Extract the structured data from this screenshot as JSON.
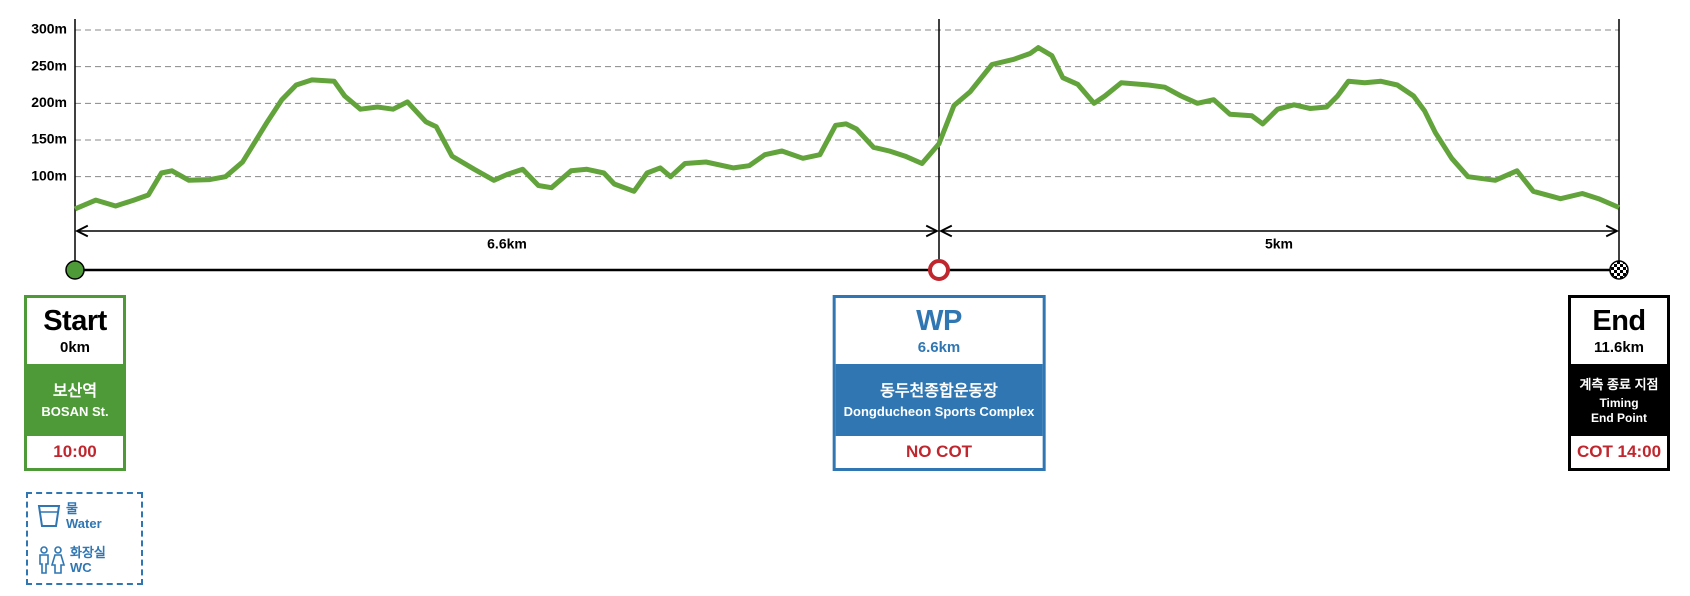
{
  "chart_data": {
    "type": "line",
    "color": "#62a33c",
    "ylim": [
      0,
      315
    ],
    "yticks": [
      {
        "value": 100,
        "label": "100m"
      },
      {
        "value": 150,
        "label": "150m"
      },
      {
        "value": 200,
        "label": "200m"
      },
      {
        "value": 250,
        "label": "250m"
      },
      {
        "value": 300,
        "label": "300m"
      }
    ],
    "grid": true,
    "x": [
      0,
      0.16,
      0.31,
      0.45,
      0.56,
      0.66,
      0.74,
      0.87,
      1.03,
      1.15,
      1.28,
      1.47,
      1.58,
      1.69,
      1.81,
      1.98,
      2.06,
      2.18,
      2.31,
      2.43,
      2.54,
      2.68,
      2.76,
      2.88,
      3.05,
      3.2,
      3.3,
      3.42,
      3.54,
      3.64,
      3.79,
      3.91,
      4.04,
      4.12,
      4.27,
      4.37,
      4.47,
      4.55,
      4.66,
      4.82,
      5.03,
      5.15,
      5.27,
      5.4,
      5.56,
      5.69,
      5.81,
      5.89,
      5.97,
      6.1,
      6.22,
      6.34,
      6.47,
      6.6,
      6.71,
      6.83,
      6.99,
      7.15,
      7.27,
      7.33,
      7.43,
      7.51,
      7.62,
      7.74,
      7.82,
      7.94,
      8.14,
      8.26,
      8.38,
      8.5,
      8.62,
      8.74,
      8.9,
      8.98,
      9.09,
      9.21,
      9.33,
      9.45,
      9.53,
      9.61,
      9.73,
      9.85,
      9.97,
      10.09,
      10.17,
      10.25,
      10.37,
      10.49,
      10.69,
      10.85,
      10.97,
      11.17,
      11.33,
      11.45,
      11.6
    ],
    "values": [
      56,
      68,
      60,
      68,
      75,
      105,
      108,
      95,
      96,
      100,
      120,
      175,
      205,
      225,
      232,
      230,
      210,
      192,
      195,
      192,
      202,
      175,
      168,
      128,
      110,
      95,
      103,
      110,
      88,
      85,
      108,
      110,
      105,
      90,
      80,
      105,
      112,
      100,
      118,
      120,
      112,
      115,
      130,
      135,
      125,
      130,
      170,
      172,
      165,
      140,
      135,
      128,
      118,
      145,
      197,
      216,
      253,
      260,
      268,
      276,
      265,
      235,
      226,
      200,
      210,
      228,
      225,
      222,
      210,
      200,
      205,
      185,
      183,
      172,
      192,
      198,
      193,
      195,
      210,
      230,
      228,
      230,
      225,
      210,
      190,
      160,
      125,
      100,
      95,
      108,
      80,
      70,
      77,
      70,
      58
    ],
    "segments": [
      {
        "value": 6.6,
        "label": "6.6km"
      },
      {
        "value": 5,
        "label": "5km"
      }
    ],
    "checkpoints": [
      {
        "name": "Start",
        "km": {
          "value": 0,
          "label": "0km"
        },
        "place_ko": "보산역",
        "place_en": [
          "BOSAN St."
        ],
        "cot": "10:00",
        "color": "#4f9a38"
      },
      {
        "name": "WP",
        "km": {
          "value": 6.6,
          "label": "6.6km"
        },
        "place_ko": "동두천종합운동장",
        "place_en": [
          "Dongducheon Sports Complex"
        ],
        "cot": "NO COT",
        "color": "#2f76b3"
      },
      {
        "name": "End",
        "km": {
          "value": 11.6,
          "label": "11.6km"
        },
        "place_ko": "계측 종료 지점",
        "place_en": [
          "Timing",
          "End Point"
        ],
        "cot": "COT 14:00",
        "color": "#000000"
      }
    ],
    "facilities": [
      {
        "ko": "물",
        "en": "Water"
      },
      {
        "ko": "화장실",
        "en": "WC"
      }
    ]
  }
}
